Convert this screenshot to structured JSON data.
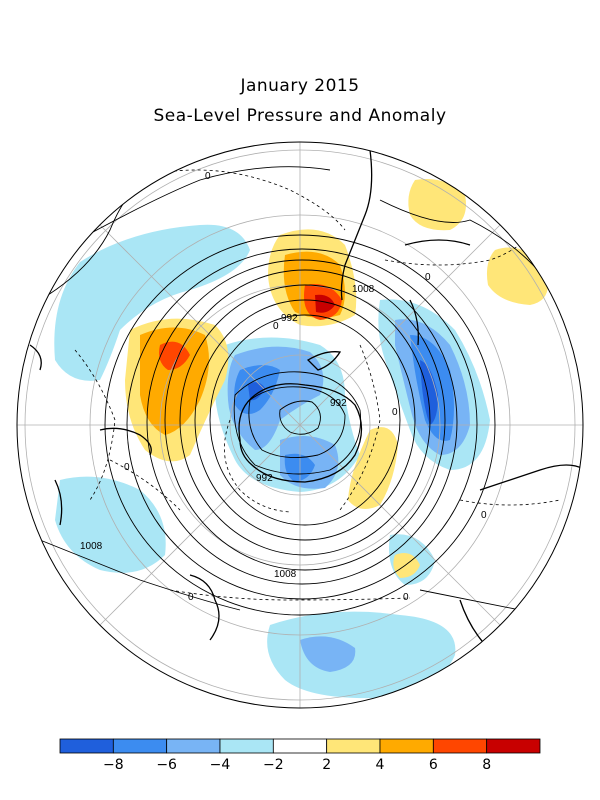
{
  "title": "January 2015",
  "subtitle": "Sea-Level Pressure and Anomaly",
  "contour_labels": [
    {
      "text": "0",
      "at": "upper-left"
    },
    {
      "text": "0",
      "at": "upper-right"
    },
    {
      "text": "1008",
      "at": "upper-center"
    },
    {
      "text": "992",
      "at": "center-north"
    },
    {
      "text": "992",
      "at": "center-east"
    },
    {
      "text": "0",
      "at": "center-east-2"
    },
    {
      "text": "0",
      "at": "center-west"
    },
    {
      "text": "0",
      "at": "center-west-2"
    },
    {
      "text": "992",
      "at": "center-south"
    },
    {
      "text": "0",
      "at": "right"
    },
    {
      "text": "1008",
      "at": "lower-left"
    },
    {
      "text": "1008",
      "at": "lower-center"
    },
    {
      "text": "0",
      "at": "lower-left-2"
    },
    {
      "text": "0",
      "at": "lower-right"
    }
  ],
  "colorbar": {
    "colors": [
      "#1f5fdc",
      "#3c8cf0",
      "#78b4f5",
      "#aae6f5",
      "#ffffff",
      "#ffe678",
      "#ffaa00",
      "#ff4600",
      "#c80000"
    ],
    "tick_labels": [
      "-8",
      "-6",
      "-4",
      "-2",
      "2",
      "4",
      "6",
      "8"
    ]
  },
  "anomaly_palette": {
    "strong_negative": "#1f5fdc",
    "negative": "#3c8cf0",
    "weak_negative": "#78b4f5",
    "slight_negative": "#aae6f5",
    "slight_positive": "#ffe678",
    "positive": "#ffaa00",
    "strong_positive": "#ff4600",
    "extreme_positive": "#c80000"
  }
}
